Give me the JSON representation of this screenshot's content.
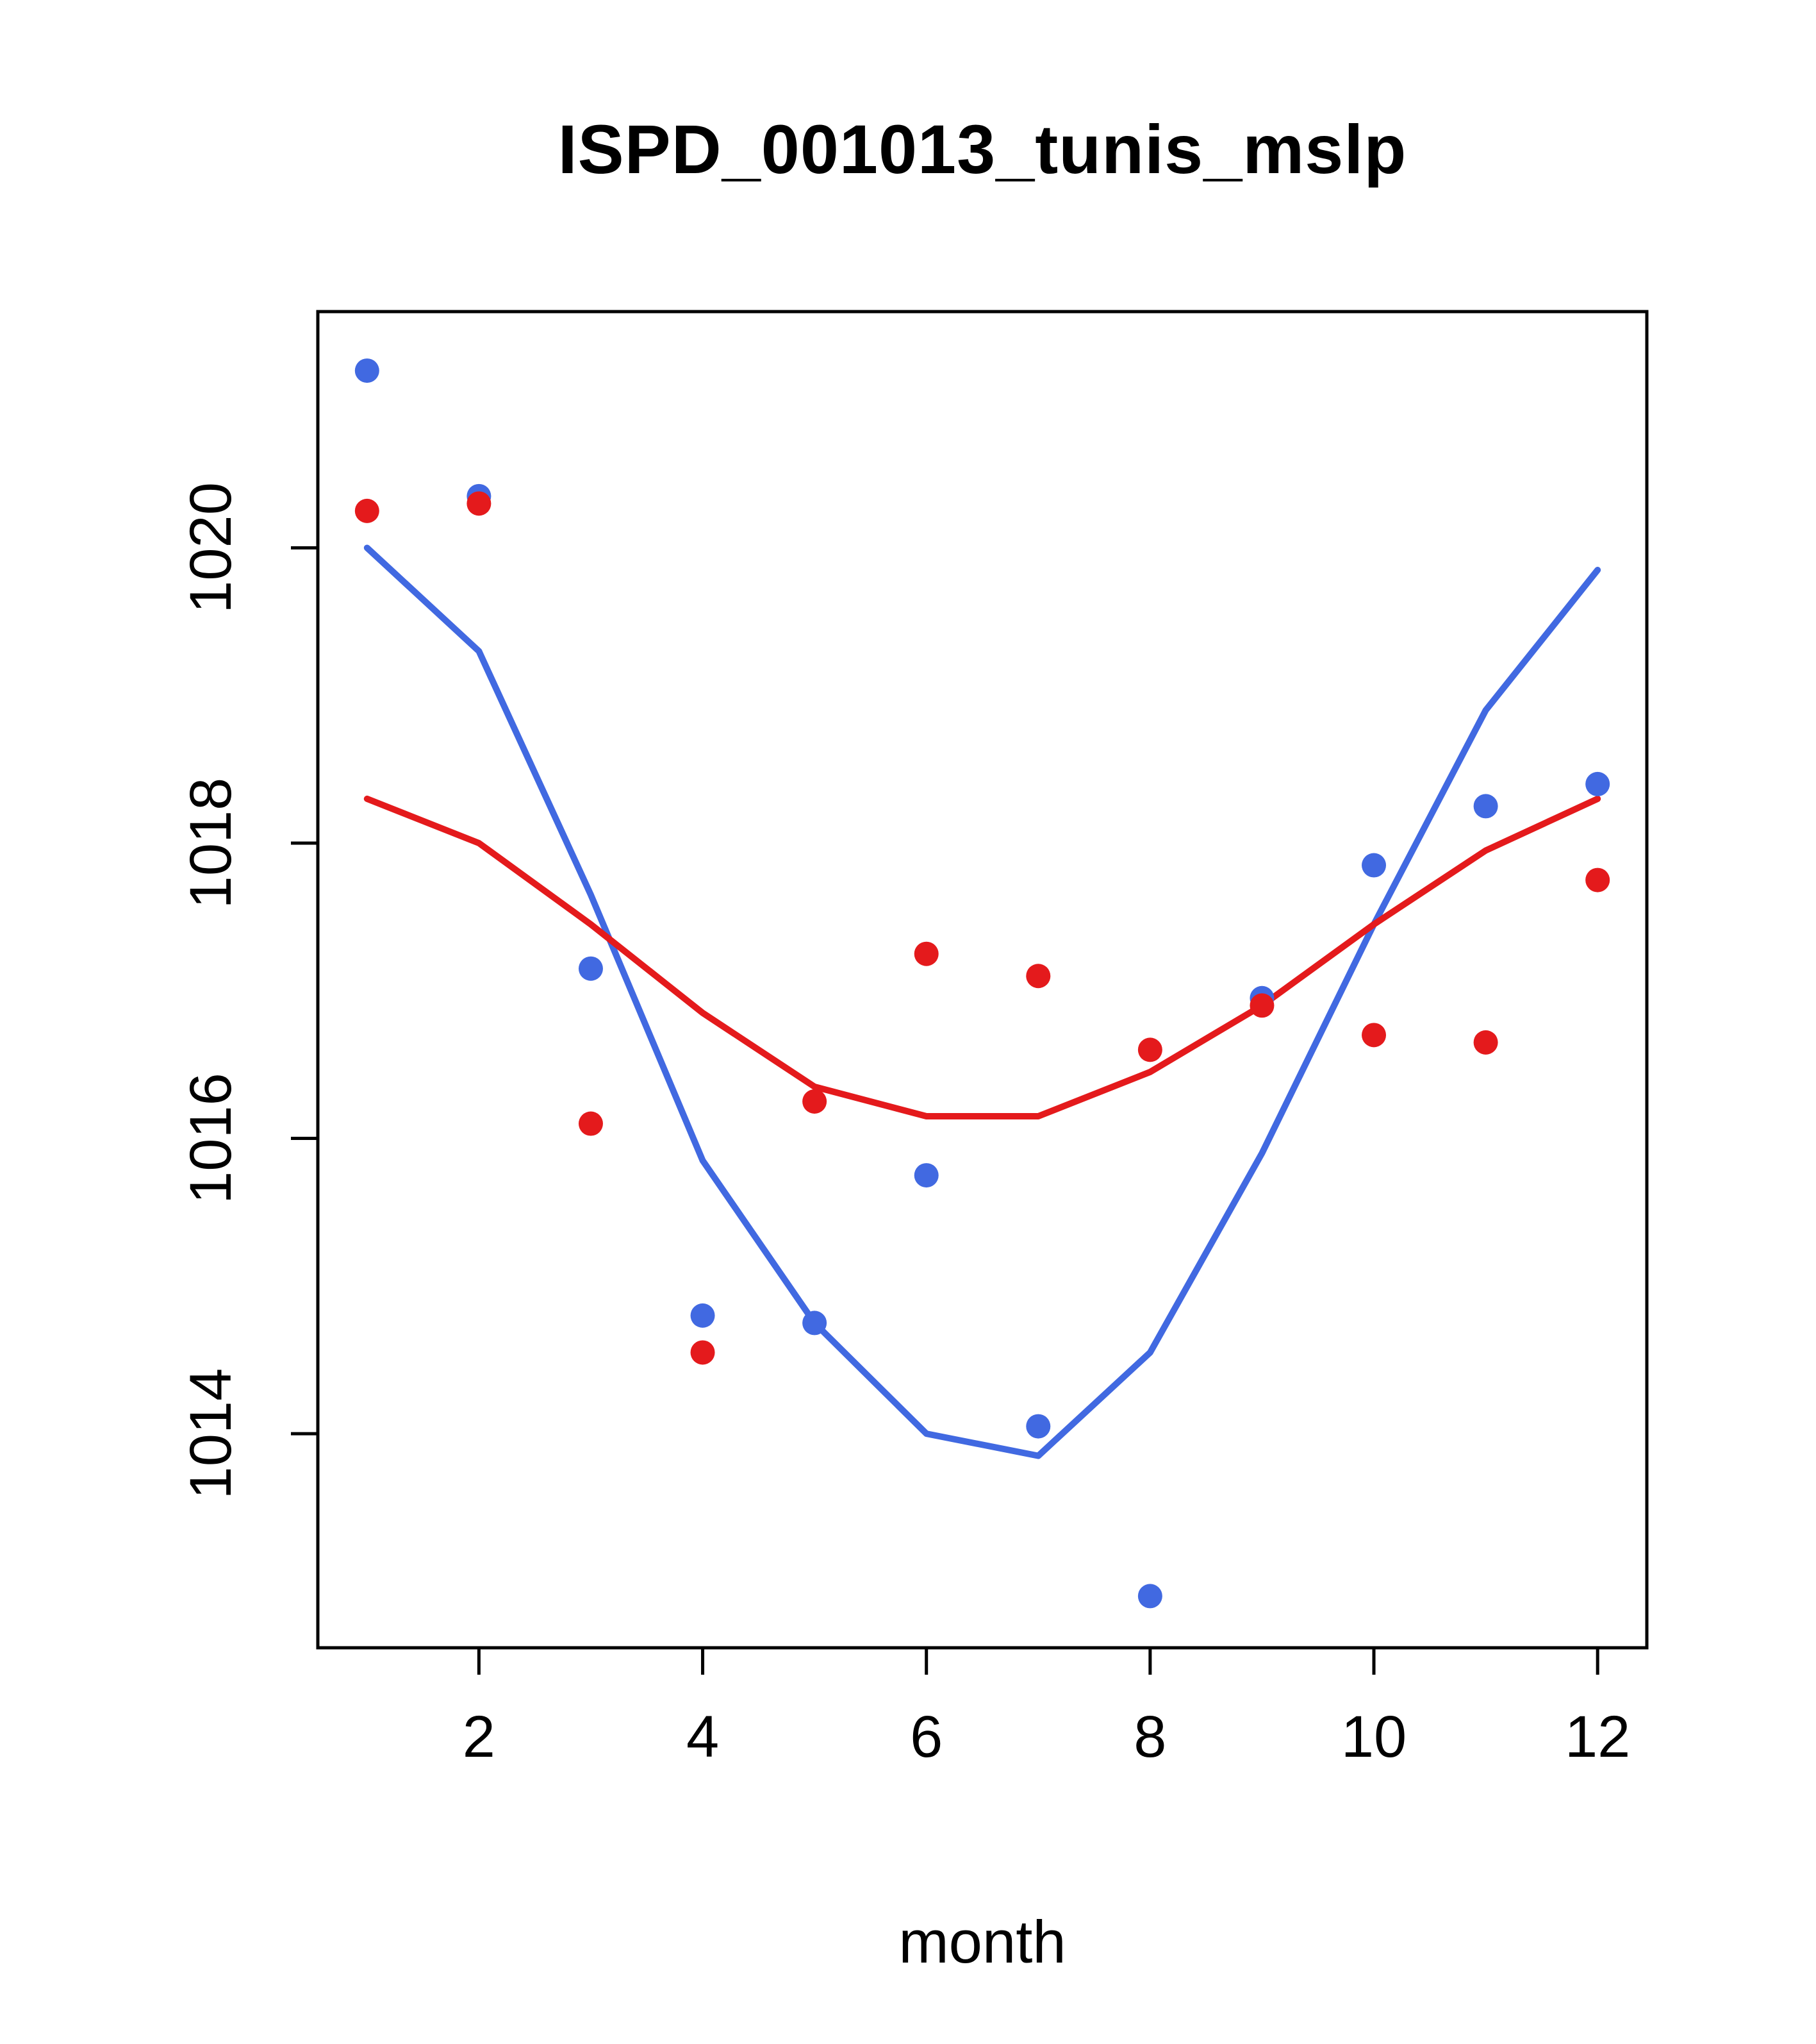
{
  "chart_data": {
    "type": "scatter",
    "title": "ISPD_001013_tunis_mslp",
    "xlabel": "month",
    "ylabel": "",
    "x": [
      1,
      2,
      3,
      4,
      5,
      6,
      7,
      8,
      9,
      10,
      11,
      12
    ],
    "series": [
      {
        "name": "blue-points",
        "kind": "scatter",
        "color": "#4169E1",
        "values": [
          1021.2,
          1020.35,
          1017.15,
          1014.8,
          1014.75,
          1015.75,
          1014.05,
          1012.9,
          1016.95,
          1017.85,
          1018.25,
          1018.4
        ]
      },
      {
        "name": "red-points",
        "kind": "scatter",
        "color": "#E41A1C",
        "values": [
          1020.25,
          1020.3,
          1016.1,
          1014.55,
          1016.25,
          1017.25,
          1017.1,
          1016.6,
          1016.9,
          1016.7,
          1016.65,
          1017.75
        ]
      },
      {
        "name": "blue-smooth-line",
        "kind": "line",
        "color": "#4169E1",
        "values": [
          1020.0,
          1019.3,
          1017.65,
          1015.85,
          1014.75,
          1014.0,
          1013.85,
          1014.55,
          1015.9,
          1017.45,
          1018.9,
          1019.85
        ]
      },
      {
        "name": "red-smooth-line",
        "kind": "line",
        "color": "#E41A1C",
        "values": [
          1018.3,
          1018.0,
          1017.45,
          1016.85,
          1016.35,
          1016.15,
          1016.15,
          1016.45,
          1016.9,
          1017.45,
          1017.95,
          1018.3
        ]
      }
    ],
    "xticks": [
      2,
      4,
      6,
      8,
      10,
      12
    ],
    "yticks": [
      1014,
      1016,
      1018,
      1020
    ],
    "xlim": [
      0.56,
      12.44
    ],
    "ylim": [
      1012.55,
      1021.6
    ],
    "grid": false,
    "legend": "none",
    "axis_color": "#000000"
  }
}
